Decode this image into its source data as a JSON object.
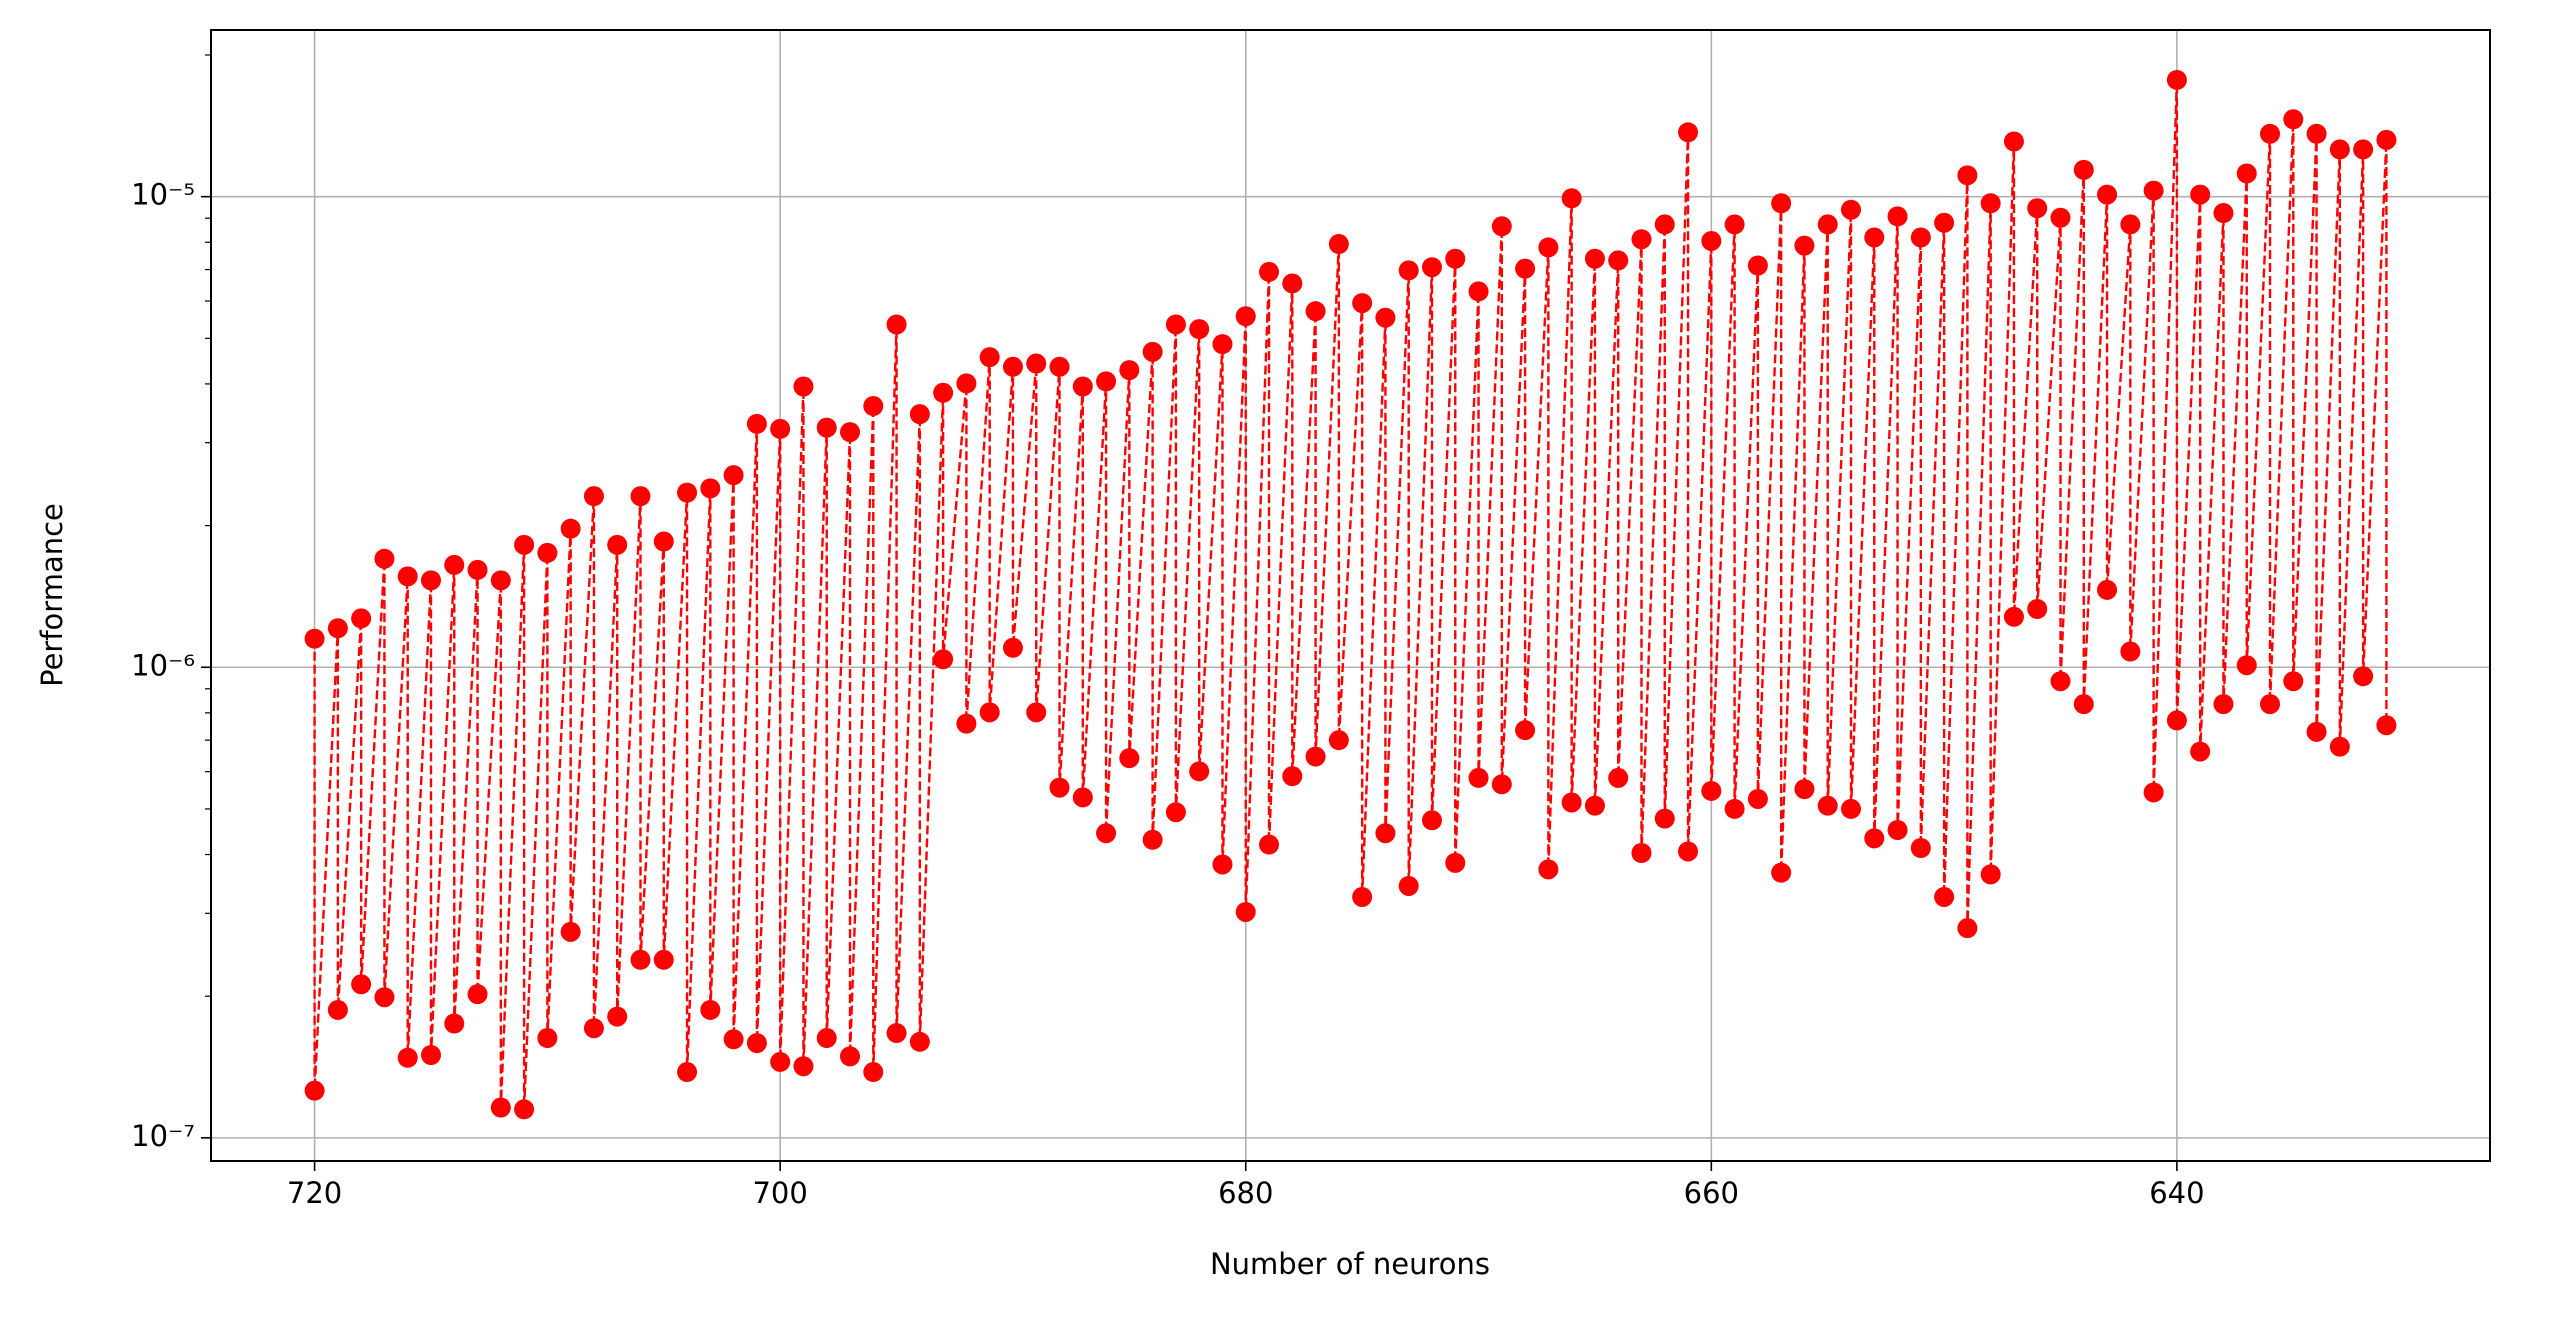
{
  "chart_data": {
    "type": "line",
    "xlabel": "Number of neurons",
    "ylabel": "Performance",
    "yscale": "log",
    "grid": true,
    "color": "#ff0000",
    "linestyle": "dashed",
    "marker": "o",
    "xlim": [
      724.45,
      626.55
    ],
    "xticks": [
      720,
      700,
      680,
      660,
      640
    ],
    "ylim": [
      8.93e-08,
      2.26e-05
    ],
    "yticks": [
      {
        "value": 1e-07,
        "label": "10⁻⁷"
      },
      {
        "value": 1e-06,
        "label": "10⁻⁶"
      },
      {
        "value": 1e-05,
        "label": "10⁻⁵"
      }
    ],
    "yminorticks": [
      2e-07,
      3e-07,
      4e-07,
      5e-07,
      6e-07,
      7e-07,
      8e-07,
      9e-07,
      2e-06,
      3e-06,
      4e-06,
      5e-06,
      6e-06,
      7e-06,
      8e-06,
      9e-06,
      2e-05
    ],
    "x": [
      720,
      720,
      719,
      719,
      718,
      718,
      717,
      717,
      716,
      716,
      715,
      715,
      714,
      714,
      713,
      713,
      712,
      712,
      711,
      711,
      710,
      710,
      709,
      709,
      708,
      708,
      707,
      707,
      706,
      706,
      705,
      705,
      704,
      704,
      703,
      703,
      702,
      702,
      701,
      701,
      700,
      700,
      699,
      699,
      698,
      698,
      697,
      697,
      696,
      696,
      695,
      695,
      694,
      694,
      693,
      693,
      692,
      692,
      691,
      691,
      690,
      690,
      689,
      689,
      688,
      688,
      687,
      687,
      686,
      686,
      685,
      685,
      684,
      684,
      683,
      683,
      682,
      682,
      681,
      681,
      680,
      680,
      679,
      679,
      678,
      678,
      677,
      677,
      676,
      676,
      675,
      675,
      674,
      674,
      673,
      673,
      672,
      672,
      671,
      671,
      670,
      670,
      669,
      669,
      668,
      668,
      667,
      667,
      666,
      666,
      665,
      665,
      664,
      664,
      663,
      663,
      662,
      662,
      661,
      661,
      660,
      660,
      659,
      659,
      658,
      658,
      657,
      657,
      656,
      656,
      655,
      655,
      654,
      654,
      653,
      653,
      652,
      652,
      651,
      651,
      650,
      650,
      649,
      649,
      648,
      648,
      647,
      647,
      646,
      646,
      645,
      645,
      644,
      644,
      643,
      643,
      642,
      642,
      641,
      641,
      640,
      640,
      639,
      639,
      638,
      638,
      637,
      637,
      636,
      636,
      635,
      635,
      634,
      634,
      633,
      633,
      632,
      632,
      631,
      631
    ],
    "values": [
      1.15e-06,
      1.26e-07,
      1.21e-06,
      1.87e-07,
      1.27e-06,
      2.12e-07,
      1.7e-06,
      1.99e-07,
      1.56e-06,
      1.48e-07,
      1.53e-06,
      1.5e-07,
      1.65e-06,
      1.75e-07,
      1.61e-06,
      2.02e-07,
      1.53e-06,
      1.16e-07,
      1.82e-06,
      1.15e-07,
      1.75e-06,
      1.63e-07,
      1.97e-06,
      2.74e-07,
      2.31e-06,
      1.71e-07,
      1.82e-06,
      1.81e-07,
      2.31e-06,
      2.39e-07,
      1.85e-06,
      2.39e-07,
      2.35e-06,
      1.38e-07,
      2.4e-06,
      1.87e-07,
      2.56e-06,
      1.62e-07,
      3.29e-06,
      1.59e-07,
      3.21e-06,
      1.45e-07,
      3.95e-06,
      1.42e-07,
      3.23e-06,
      1.63e-07,
      3.16e-06,
      1.49e-07,
      3.59e-06,
      1.38e-07,
      5.35e-06,
      1.67e-07,
      3.45e-06,
      1.6e-07,
      3.83e-06,
      1.04e-06,
      4.01e-06,
      7.59e-07,
      4.56e-06,
      8.02e-07,
      4.35e-06,
      1.1e-06,
      4.42e-06,
      8.02e-07,
      4.35e-06,
      5.55e-07,
      3.95e-06,
      5.29e-07,
      4.05e-06,
      4.44e-07,
      4.28e-06,
      6.41e-07,
      4.68e-06,
      4.3e-07,
      5.35e-06,
      4.92e-07,
      5.23e-06,
      6.01e-07,
      4.86e-06,
      3.81e-07,
      5.57e-06,
      3.02e-07,
      6.92e-06,
      4.2e-07,
      6.54e-06,
      5.87e-07,
      5.71e-06,
      6.46e-07,
      7.93e-06,
      7e-07,
      5.94e-06,
      3.25e-07,
      5.53e-06,
      4.44e-07,
      6.97e-06,
      3.43e-07,
      7.08e-06,
      4.73e-07,
      7.38e-06,
      3.84e-07,
      6.29e-06,
      5.82e-07,
      8.65e-06,
      5.64e-07,
      7.03e-06,
      7.35e-07,
      7.8e-06,
      3.72e-07,
      9.92e-06,
      5.16e-07,
      7.38e-06,
      5.08e-07,
      7.32e-06,
      5.82e-07,
      8.12e-06,
      4.03e-07,
      8.73e-06,
      4.77e-07,
      1.37e-05,
      4.06e-07,
      8.05e-06,
      5.46e-07,
      8.73e-06,
      5e-07,
      7.14e-06,
      5.25e-07,
      9.68e-06,
      3.66e-07,
      7.87e-06,
      5.51e-07,
      8.73e-06,
      5.08e-07,
      9.38e-06,
      5e-07,
      8.19e-06,
      4.33e-07,
      9.08e-06,
      4.51e-07,
      8.19e-06,
      4.13e-07,
      8.8e-06,
      3.25e-07,
      1.11e-05,
      2.79e-07,
      9.68e-06,
      3.63e-07,
      1.31e-05,
      1.28e-06,
      9.45e-06,
      1.33e-06,
      9.02e-06,
      9.34e-07,
      1.14e-05,
      8.35e-07,
      1.01e-05,
      1.46e-06,
      8.73e-06,
      1.08e-06,
      1.03e-05,
      5.42e-07,
      1.77e-05,
      7.71e-07,
      1.01e-05,
      6.62e-07,
      9.23e-06,
      8.35e-07,
      1.12e-05,
      1.01e-06,
      1.36e-05,
      8.35e-07,
      1.46e-05,
      9.34e-07,
      1.36e-05,
      7.29e-07,
      1.26e-05,
      6.78e-07,
      1.26e-05,
      9.57e-07,
      1.32e-05,
      7.53e-07
    ]
  }
}
